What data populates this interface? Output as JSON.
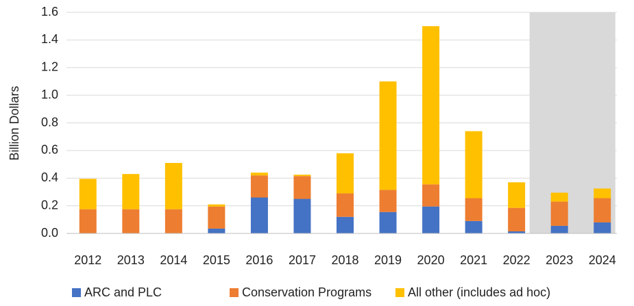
{
  "chart_data": {
    "type": "stacked_bar",
    "y_label": "Billion Dollars",
    "categories": [
      "2012",
      "2013",
      "2014",
      "2015",
      "2016",
      "2017",
      "2018",
      "2019",
      "2020",
      "2021",
      "2022",
      "2023",
      "2024"
    ],
    "series": [
      {
        "name": "ARC and PLC",
        "color": "#4472c4",
        "values": [
          0,
          0,
          0,
          0.035,
          0.26,
          0.25,
          0.12,
          0.155,
          0.195,
          0.09,
          0.015,
          0.055,
          0.08
        ]
      },
      {
        "name": "Conservation Programs",
        "color": "#ed7d31",
        "values": [
          0.175,
          0.175,
          0.175,
          0.16,
          0.16,
          0.165,
          0.17,
          0.16,
          0.16,
          0.165,
          0.17,
          0.175,
          0.175
        ]
      },
      {
        "name": "All other (includes ad hoc)",
        "color": "#ffc000",
        "values": [
          0.22,
          0.255,
          0.335,
          0.015,
          0.02,
          0.01,
          0.29,
          0.785,
          1.145,
          0.485,
          0.185,
          0.065,
          0.07
        ]
      }
    ],
    "ylim": [
      0,
      1.6
    ],
    "yticks": [
      {
        "value": 0,
        "label": "0.0"
      },
      0.2,
      0.4,
      0.6,
      0.8,
      {
        "value": 1,
        "label": "1.0"
      },
      1.2,
      1.4,
      1.6
    ],
    "grid": true,
    "shaded_categories": [
      "2022",
      "2023",
      "2024"
    ],
    "legend": "bottom"
  }
}
